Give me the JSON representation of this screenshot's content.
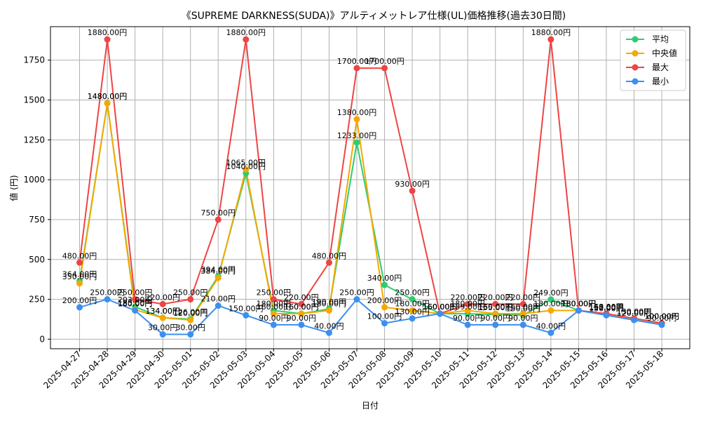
{
  "chart_data": {
    "type": "line",
    "title": "《SUPREME DARKNESS(SUDA)》アルティメットレア仕様(UL)価格推移(過去30日間)",
    "xlabel": "日付",
    "ylabel": "値 (円)",
    "ylim": [
      -60,
      1960
    ],
    "yticks": [
      0,
      250,
      500,
      750,
      1000,
      1250,
      1500,
      1750
    ],
    "grid": true,
    "legend_position": "top-right",
    "value_suffix": "円",
    "categories": [
      "2025-04-27",
      "2025-04-28",
      "2025-04-29",
      "2025-04-30",
      "2025-05-01",
      "2025-05-02",
      "2025-05-03",
      "2025-05-04",
      "2025-05-05",
      "2025-05-06",
      "2025-05-07",
      "2025-05-08",
      "2025-05-09",
      "2025-05-10",
      "2025-05-11",
      "2025-05-12",
      "2025-05-13",
      "2025-05-14",
      "2025-05-15",
      "2025-05-16",
      "2025-05-17",
      "2025-05-18"
    ],
    "series": [
      {
        "name": "平均",
        "color": "#2ecc71",
        "values": [
          364,
          1480,
          203,
          134,
          126,
          394,
          1040,
          180,
          160,
          190,
          1233,
          340,
          250,
          160,
          159,
          155,
          150,
          249,
          180,
          157,
          130,
          100
        ]
      },
      {
        "name": "中央値",
        "color": "#f5a800",
        "values": [
          350,
          1480,
          185,
          134,
          120,
          384,
          1065,
          160,
          160,
          180,
          1380,
          200,
          180,
          160,
          180,
          160,
          160,
          180,
          180,
          155,
          130,
          100
        ]
      },
      {
        "name": "最大",
        "color": "#ef4444",
        "values": [
          480,
          1880,
          250,
          220,
          250,
          750,
          1880,
          250,
          220,
          480,
          1700,
          1700,
          930,
          160,
          220,
          220,
          220,
          1880,
          180,
          160,
          130,
          100
        ]
      },
      {
        "name": "最小",
        "color": "#3b8ff0",
        "values": [
          200,
          250,
          180,
          30,
          30,
          210,
          150,
          90,
          90,
          40,
          250,
          100,
          130,
          160,
          90,
          90,
          90,
          40,
          180,
          150,
          120,
          90
        ]
      }
    ]
  }
}
